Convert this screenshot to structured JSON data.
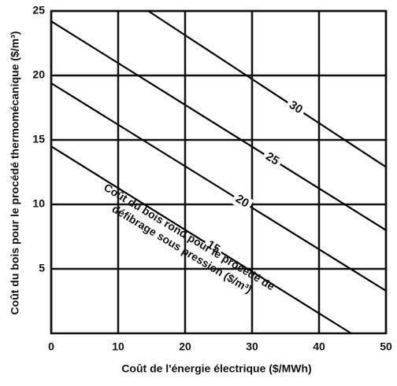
{
  "chart_data": {
    "type": "line",
    "xlabel": "Coût de l'énergie électrique ($/MWh)",
    "ylabel": "Coût du bois pour le procédé thermomécanique ($/m³)",
    "annotation": [
      "Coût du bois rond pour le procédé de",
      "défibrage sous pression ($/m³)"
    ],
    "xlim": [
      0,
      50
    ],
    "xticks": [
      0,
      10,
      20,
      30,
      40,
      50
    ],
    "ylim": [
      0,
      25
    ],
    "yticks": [
      5,
      10,
      15,
      20,
      25
    ],
    "grid": true,
    "series": [
      {
        "name": "15",
        "color": "#000000",
        "x": [
          0,
          44.8
        ],
        "values": [
          14.5,
          0
        ]
      },
      {
        "name": "20",
        "color": "#000000",
        "x": [
          0,
          50
        ],
        "values": [
          19.4,
          3.3
        ]
      },
      {
        "name": "25",
        "color": "#000000",
        "x": [
          0,
          50
        ],
        "values": [
          24.2,
          8.0
        ]
      },
      {
        "name": "30",
        "color": "#000000",
        "x": [
          14.5,
          50
        ],
        "values": [
          25,
          12.9
        ]
      }
    ]
  }
}
